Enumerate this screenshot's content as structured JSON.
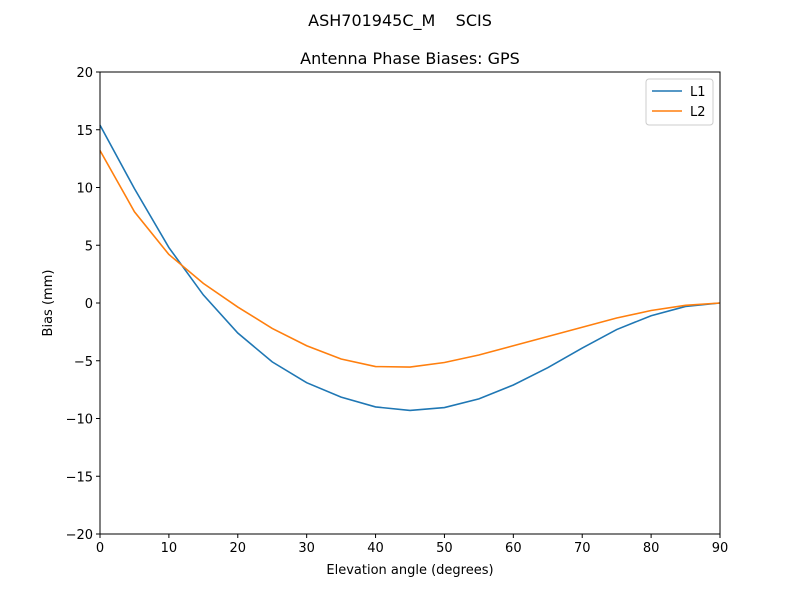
{
  "chart_data": {
    "type": "line",
    "suptitle": "ASH701945C_M    SCIS",
    "title": "Antenna Phase Biases: GPS",
    "xlabel": "Elevation angle (degrees)",
    "ylabel": "Bias (mm)",
    "xlim": [
      0,
      90
    ],
    "ylim": [
      -20,
      20
    ],
    "xticks": [
      "0",
      "10",
      "20",
      "30",
      "40",
      "50",
      "60",
      "70",
      "80",
      "90"
    ],
    "yticks": [
      "−20",
      "−15",
      "−10",
      "−5",
      "0",
      "5",
      "10",
      "15",
      "20"
    ],
    "grid": false,
    "legend_position": "top-right",
    "x": [
      0,
      5,
      10,
      15,
      20,
      25,
      30,
      35,
      40,
      45,
      50,
      55,
      60,
      65,
      70,
      75,
      80,
      85,
      90
    ],
    "series": [
      {
        "name": "L1",
        "color": "#1f77b4",
        "values": [
          15.4,
          9.9,
          4.8,
          0.7,
          -2.6,
          -5.1,
          -6.9,
          -8.15,
          -9.0,
          -9.3,
          -9.05,
          -8.3,
          -7.1,
          -5.6,
          -3.9,
          -2.3,
          -1.1,
          -0.3,
          0.0
        ]
      },
      {
        "name": "L2",
        "color": "#ff7f0e",
        "values": [
          13.2,
          7.9,
          4.2,
          1.7,
          -0.35,
          -2.2,
          -3.7,
          -4.85,
          -5.5,
          -5.55,
          -5.15,
          -4.5,
          -3.7,
          -2.9,
          -2.1,
          -1.3,
          -0.65,
          -0.2,
          0.0
        ]
      }
    ]
  }
}
